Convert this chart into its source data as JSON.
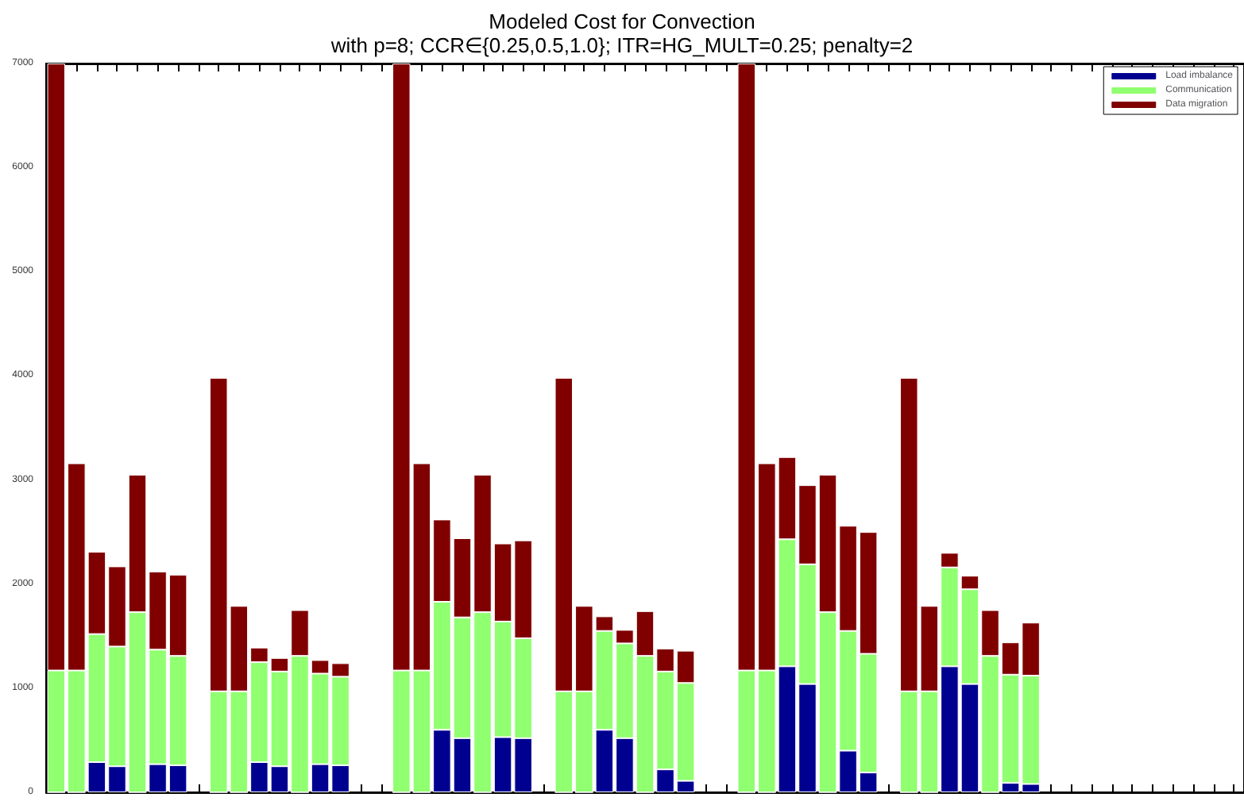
{
  "chart_data": {
    "type": "bar",
    "stacked": true,
    "title": "Modeled Cost for Convection",
    "subtitle": "with p=8; CCR∈{0.25,0.5,1.0}; ITR=HG_MULT=0.25; penalty=2",
    "categories": [
      null,
      null,
      null,
      null,
      null,
      null,
      null,
      null,
      null,
      null,
      null,
      null,
      null,
      null,
      null,
      null,
      null,
      null,
      null,
      null,
      null,
      null,
      null,
      null,
      null,
      null,
      null,
      null,
      null,
      null,
      null,
      null,
      null,
      null,
      null,
      null,
      null,
      null,
      null,
      null,
      null,
      null,
      null,
      null,
      null,
      null,
      null,
      null,
      null,
      null,
      null,
      null,
      null,
      null,
      null,
      null,
      null,
      null,
      null
    ],
    "series": [
      {
        "name": "Load imbalance",
        "color": "#000090",
        "values": [
          0,
          0,
          290,
          250,
          0,
          270,
          260,
          null,
          0,
          0,
          290,
          250,
          0,
          270,
          260,
          null,
          null,
          0,
          0,
          600,
          520,
          0,
          530,
          520,
          null,
          0,
          0,
          600,
          520,
          0,
          220,
          110,
          null,
          null,
          0,
          0,
          1210,
          1040,
          0,
          400,
          190,
          null,
          0,
          0,
          1210,
          1040,
          0,
          90,
          80,
          null,
          null,
          null,
          null,
          null,
          null,
          null,
          null,
          null,
          null
        ]
      },
      {
        "name": "Communication",
        "color": "#90ff70",
        "values": [
          1170,
          1170,
          1230,
          1150,
          1730,
          1100,
          1050,
          null,
          970,
          970,
          960,
          910,
          1310,
          870,
          850,
          null,
          null,
          1170,
          1170,
          1230,
          1160,
          1730,
          1110,
          960,
          null,
          970,
          970,
          950,
          910,
          1310,
          940,
          940,
          null,
          null,
          1170,
          1170,
          1220,
          1150,
          1730,
          1150,
          1140,
          null,
          970,
          970,
          950,
          910,
          1310,
          1040,
          1040,
          null,
          null,
          null,
          null,
          null,
          null,
          null,
          null,
          null,
          null
        ]
      },
      {
        "name": "Data migration",
        "color": "#800000",
        "values": [
          5830,
          1990,
          790,
          770,
          1320,
          750,
          780,
          null,
          3010,
          820,
          140,
          130,
          440,
          130,
          130,
          null,
          null,
          5830,
          1990,
          790,
          760,
          1320,
          750,
          940,
          null,
          3010,
          820,
          140,
          130,
          430,
          220,
          310,
          null,
          null,
          5830,
          1990,
          790,
          760,
          1320,
          1010,
          1170,
          null,
          3010,
          820,
          140,
          130,
          440,
          310,
          510,
          null,
          null,
          null,
          null,
          null,
          null,
          null,
          null,
          null,
          null
        ]
      }
    ],
    "ylim": [
      0,
      7000
    ],
    "yticks": [
      0,
      1000,
      2000,
      3000,
      4000,
      5000,
      6000,
      7000
    ],
    "grid": false,
    "legend": "top right"
  }
}
